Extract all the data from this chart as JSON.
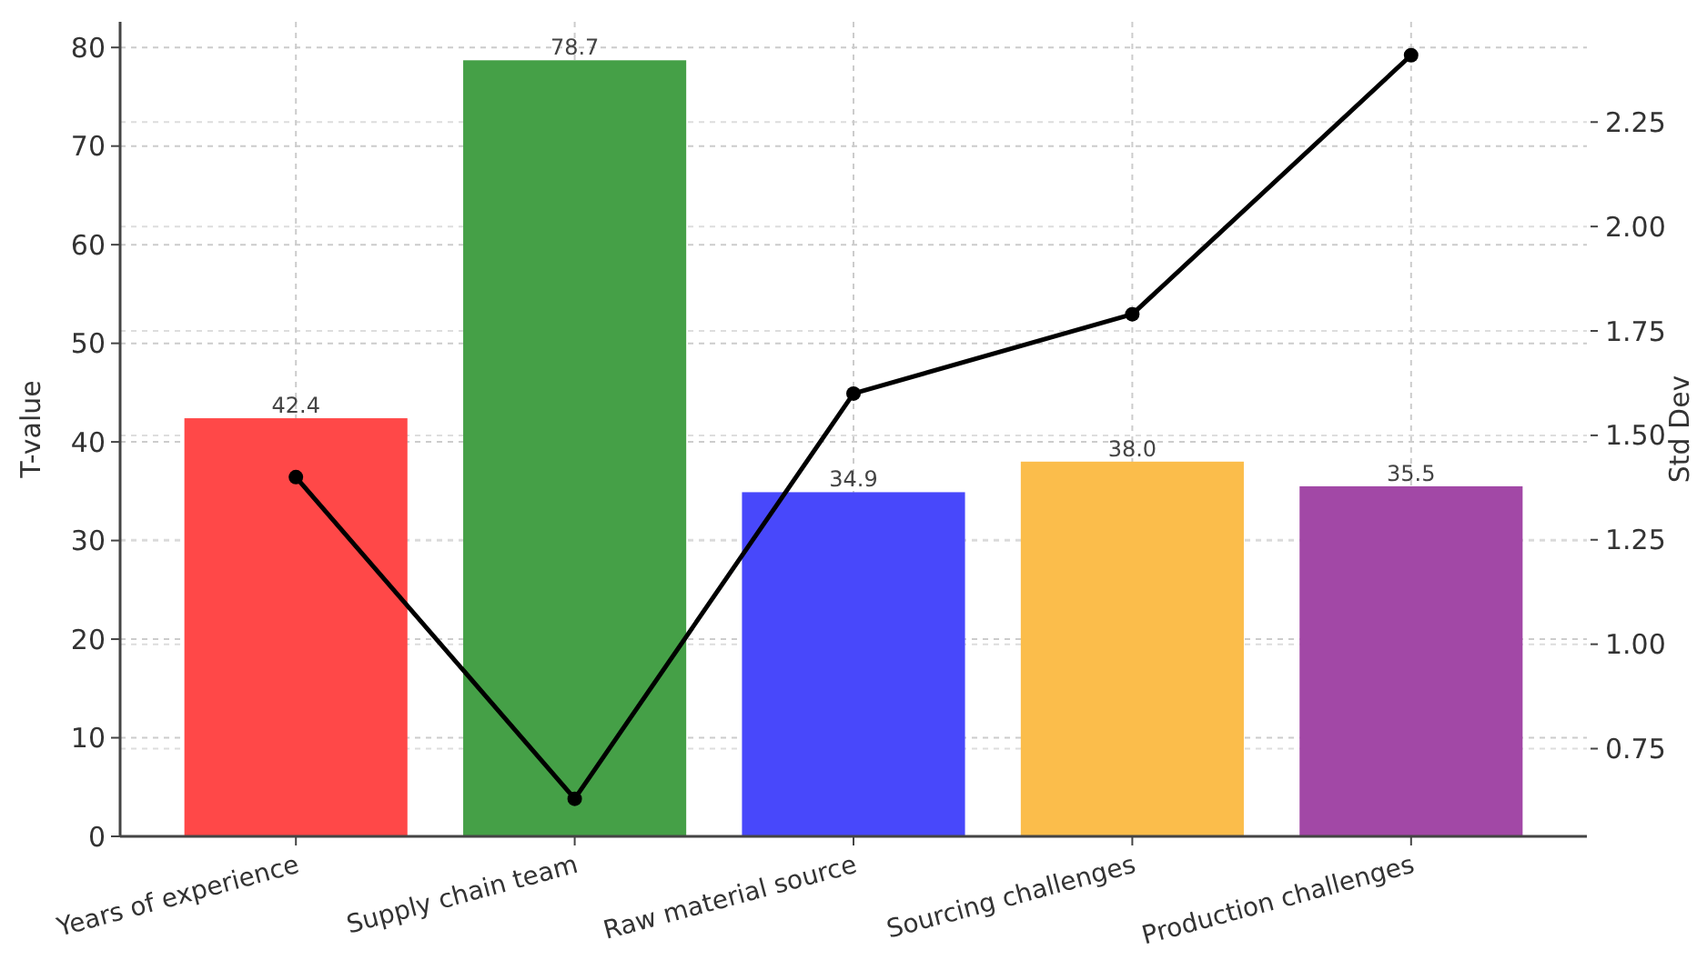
{
  "chart_data": {
    "type": "bar",
    "categories": [
      "Years of experience",
      "Supply chain team",
      "Raw material source",
      "Sourcing challenges",
      "Production challenges"
    ],
    "ylabel": "T-value",
    "y2label": "Std Dev",
    "series": [
      {
        "colors": [
          "#ff4848",
          "#45a047",
          "#4848fb",
          "#fbbd4b",
          "#a248a6"
        ],
        "values": [
          42.4,
          78.7,
          34.9,
          38.0,
          35.5
        ],
        "value_labels": [
          "42.4",
          "78.7",
          "34.9",
          "38.0",
          "35.5"
        ]
      },
      {
        "type": "line",
        "axis": "y2",
        "color": "#000000",
        "values": [
          1.4,
          0.63,
          1.6,
          1.79,
          2.41
        ]
      }
    ],
    "ylim": [
      0,
      82.6
    ],
    "yticks": [
      0,
      10,
      20,
      30,
      40,
      50,
      60,
      70,
      80
    ],
    "y2lim": [
      0.54,
      2.49
    ],
    "y2ticks": [
      {
        "value": 0.75,
        "label": "0.75"
      },
      {
        "value": 1.0,
        "label": "1.00"
      },
      {
        "value": 1.25,
        "label": "1.25"
      },
      {
        "value": 1.5,
        "label": "1.50"
      },
      {
        "value": 1.75,
        "label": "1.75"
      },
      {
        "value": 2.0,
        "label": "2.00"
      },
      {
        "value": 2.25,
        "label": "2.25"
      }
    ],
    "grid": true,
    "marker": "circle",
    "line_style": "solid"
  }
}
